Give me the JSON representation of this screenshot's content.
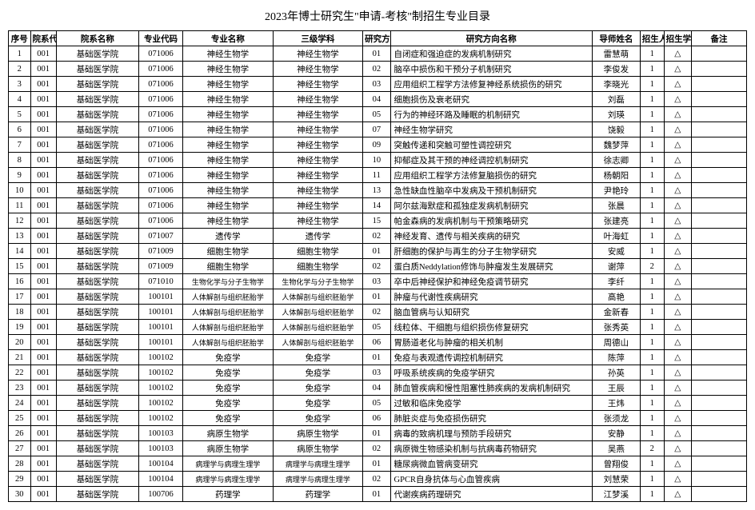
{
  "title": "2023年博士研究生\"申请-考核\"制招生专业目录",
  "headers": {
    "seq": "序号",
    "dcode": "院系代码",
    "dname": "院系名称",
    "mcode": "专业代码",
    "mname": "专业名称",
    "sub": "三级学科",
    "dircode": "研究方向代码",
    "dirname": "研究方向名称",
    "adv": "导师姓名",
    "num": "招生人数",
    "type": "招生学位类型",
    "note": "备注"
  },
  "rows": [
    {
      "seq": 1,
      "dcode": "001",
      "dname": "基础医学院",
      "mcode": "071006",
      "mname": "神经生物学",
      "sub": "神经生物学",
      "dircode": "01",
      "dirname": "自闭症和强迫症的发病机制研究",
      "adv": "雷慧萌",
      "num": 1,
      "type": "△",
      "note": ""
    },
    {
      "seq": 2,
      "dcode": "001",
      "dname": "基础医学院",
      "mcode": "071006",
      "mname": "神经生物学",
      "sub": "神经生物学",
      "dircode": "02",
      "dirname": "脑卒中损伤和干预分子机制研究",
      "adv": "李俊发",
      "num": 1,
      "type": "△",
      "note": ""
    },
    {
      "seq": 3,
      "dcode": "001",
      "dname": "基础医学院",
      "mcode": "071006",
      "mname": "神经生物学",
      "sub": "神经生物学",
      "dircode": "03",
      "dirname": "应用组织工程学方法修复神经系统损伤的研究",
      "adv": "李晓光",
      "num": 1,
      "type": "△",
      "note": ""
    },
    {
      "seq": 4,
      "dcode": "001",
      "dname": "基础医学院",
      "mcode": "071006",
      "mname": "神经生物学",
      "sub": "神经生物学",
      "dircode": "04",
      "dirname": "细胞损伤及衰老研究",
      "adv": "刘磊",
      "num": 1,
      "type": "△",
      "note": ""
    },
    {
      "seq": 5,
      "dcode": "001",
      "dname": "基础医学院",
      "mcode": "071006",
      "mname": "神经生物学",
      "sub": "神经生物学",
      "dircode": "05",
      "dirname": "行为的神经环路及睡眠的机制研究",
      "adv": "刘瑛",
      "num": 1,
      "type": "△",
      "note": ""
    },
    {
      "seq": 6,
      "dcode": "001",
      "dname": "基础医学院",
      "mcode": "071006",
      "mname": "神经生物学",
      "sub": "神经生物学",
      "dircode": "07",
      "dirname": "神经生物学研究",
      "adv": "饶毅",
      "num": 1,
      "type": "△",
      "note": ""
    },
    {
      "seq": 7,
      "dcode": "001",
      "dname": "基础医学院",
      "mcode": "071006",
      "mname": "神经生物学",
      "sub": "神经生物学",
      "dircode": "09",
      "dirname": "突触传递和突触可塑性调控研究",
      "adv": "魏梦萍",
      "num": 1,
      "type": "△",
      "note": ""
    },
    {
      "seq": 8,
      "dcode": "001",
      "dname": "基础医学院",
      "mcode": "071006",
      "mname": "神经生物学",
      "sub": "神经生物学",
      "dircode": "10",
      "dirname": "抑郁症及其干预的神经调控机制研究",
      "adv": "徐志卿",
      "num": 1,
      "type": "△",
      "note": ""
    },
    {
      "seq": 9,
      "dcode": "001",
      "dname": "基础医学院",
      "mcode": "071006",
      "mname": "神经生物学",
      "sub": "神经生物学",
      "dircode": "11",
      "dirname": "应用组织工程学方法修复脑损伤的研究",
      "adv": "杨朝阳",
      "num": 1,
      "type": "△",
      "note": ""
    },
    {
      "seq": 10,
      "dcode": "001",
      "dname": "基础医学院",
      "mcode": "071006",
      "mname": "神经生物学",
      "sub": "神经生物学",
      "dircode": "13",
      "dirname": "急性缺血性脑卒中发病及干预机制研究",
      "adv": "尹艳玲",
      "num": 1,
      "type": "△",
      "note": ""
    },
    {
      "seq": 11,
      "dcode": "001",
      "dname": "基础医学院",
      "mcode": "071006",
      "mname": "神经生物学",
      "sub": "神经生物学",
      "dircode": "14",
      "dirname": "阿尔兹海默症和孤独症发病机制研究",
      "adv": "张晨",
      "num": 1,
      "type": "△",
      "note": ""
    },
    {
      "seq": 12,
      "dcode": "001",
      "dname": "基础医学院",
      "mcode": "071006",
      "mname": "神经生物学",
      "sub": "神经生物学",
      "dircode": "15",
      "dirname": "帕金森病的发病机制与干预策略研究",
      "adv": "张建亮",
      "num": 1,
      "type": "△",
      "note": ""
    },
    {
      "seq": 13,
      "dcode": "001",
      "dname": "基础医学院",
      "mcode": "071007",
      "mname": "遗传学",
      "sub": "遗传学",
      "dircode": "02",
      "dirname": "神经发育、遗传与相关疾病的研究",
      "adv": "叶海虹",
      "num": 1,
      "type": "△",
      "note": ""
    },
    {
      "seq": 14,
      "dcode": "001",
      "dname": "基础医学院",
      "mcode": "071009",
      "mname": "细胞生物学",
      "sub": "细胞生物学",
      "dircode": "01",
      "dirname": "肝细胞的保护与再生的分子生物学研究",
      "adv": "安威",
      "num": 1,
      "type": "△",
      "note": ""
    },
    {
      "seq": 15,
      "dcode": "001",
      "dname": "基础医学院",
      "mcode": "071009",
      "mname": "细胞生物学",
      "sub": "细胞生物学",
      "dircode": "02",
      "dirname": "蛋白质Neddylation修饰与肿瘤发生发展研究",
      "adv": "谢萍",
      "num": 2,
      "type": "△",
      "note": ""
    },
    {
      "seq": 16,
      "dcode": "001",
      "dname": "基础医学院",
      "mcode": "071010",
      "mname": "生物化学与分子生物学",
      "sub": "生物化学与分子生物学",
      "dircode": "03",
      "dirname": "卒中后神经保护和神经免疫调节研究",
      "adv": "李纤",
      "num": 1,
      "type": "△",
      "note": ""
    },
    {
      "seq": 17,
      "dcode": "001",
      "dname": "基础医学院",
      "mcode": "100101",
      "mname": "人体解剖与组织胚胎学",
      "sub": "人体解剖与组织胚胎学",
      "dircode": "01",
      "dirname": "肿瘤与代谢性疾病研究",
      "adv": "高艳",
      "num": 1,
      "type": "△",
      "note": ""
    },
    {
      "seq": 18,
      "dcode": "001",
      "dname": "基础医学院",
      "mcode": "100101",
      "mname": "人体解剖与组织胚胎学",
      "sub": "人体解剖与组织胚胎学",
      "dircode": "02",
      "dirname": "脑血管病与认知研究",
      "adv": "金新春",
      "num": 1,
      "type": "△",
      "note": ""
    },
    {
      "seq": 19,
      "dcode": "001",
      "dname": "基础医学院",
      "mcode": "100101",
      "mname": "人体解剖与组织胚胎学",
      "sub": "人体解剖与组织胚胎学",
      "dircode": "05",
      "dirname": "线粒体、干细胞与组织损伤修复研究",
      "adv": "张秀英",
      "num": 1,
      "type": "△",
      "note": ""
    },
    {
      "seq": 20,
      "dcode": "001",
      "dname": "基础医学院",
      "mcode": "100101",
      "mname": "人体解剖与组织胚胎学",
      "sub": "人体解剖与组织胚胎学",
      "dircode": "06",
      "dirname": "胃肠道老化与肿瘤的相关机制",
      "adv": "周德山",
      "num": 1,
      "type": "△",
      "note": ""
    },
    {
      "seq": 21,
      "dcode": "001",
      "dname": "基础医学院",
      "mcode": "100102",
      "mname": "免疫学",
      "sub": "免疫学",
      "dircode": "01",
      "dirname": "免疫与表观遗传调控机制研究",
      "adv": "陈萍",
      "num": 1,
      "type": "△",
      "note": ""
    },
    {
      "seq": 22,
      "dcode": "001",
      "dname": "基础医学院",
      "mcode": "100102",
      "mname": "免疫学",
      "sub": "免疫学",
      "dircode": "03",
      "dirname": "呼吸系统疾病的免疫学研究",
      "adv": "孙英",
      "num": 1,
      "type": "△",
      "note": ""
    },
    {
      "seq": 23,
      "dcode": "001",
      "dname": "基础医学院",
      "mcode": "100102",
      "mname": "免疫学",
      "sub": "免疫学",
      "dircode": "04",
      "dirname": "肺血管疾病和慢性阻塞性肺疾病的发病机制研究",
      "adv": "王辰",
      "num": 1,
      "type": "△",
      "note": ""
    },
    {
      "seq": 24,
      "dcode": "001",
      "dname": "基础医学院",
      "mcode": "100102",
      "mname": "免疫学",
      "sub": "免疫学",
      "dircode": "05",
      "dirname": "过敏和临床免疫学",
      "adv": "王炜",
      "num": 1,
      "type": "△",
      "note": ""
    },
    {
      "seq": 25,
      "dcode": "001",
      "dname": "基础医学院",
      "mcode": "100102",
      "mname": "免疫学",
      "sub": "免疫学",
      "dircode": "06",
      "dirname": "肺脏炎症与免疫损伤研究",
      "adv": "张须龙",
      "num": 1,
      "type": "△",
      "note": ""
    },
    {
      "seq": 26,
      "dcode": "001",
      "dname": "基础医学院",
      "mcode": "100103",
      "mname": "病原生物学",
      "sub": "病原生物学",
      "dircode": "01",
      "dirname": "病毒的致病机理与预防手段研究",
      "adv": "安静",
      "num": 1,
      "type": "△",
      "note": ""
    },
    {
      "seq": 27,
      "dcode": "001",
      "dname": "基础医学院",
      "mcode": "100103",
      "mname": "病原生物学",
      "sub": "病原生物学",
      "dircode": "02",
      "dirname": "病原微生物感染机制与抗病毒药物研究",
      "adv": "吴燕",
      "num": 2,
      "type": "△",
      "note": ""
    },
    {
      "seq": 28,
      "dcode": "001",
      "dname": "基础医学院",
      "mcode": "100104",
      "mname": "病理学与病理生理学",
      "sub": "病理学与病理生理学",
      "dircode": "01",
      "dirname": "糖尿病微血管病变研究",
      "adv": "曾翔俊",
      "num": 1,
      "type": "△",
      "note": ""
    },
    {
      "seq": 29,
      "dcode": "001",
      "dname": "基础医学院",
      "mcode": "100104",
      "mname": "病理学与病理生理学",
      "sub": "病理学与病理生理学",
      "dircode": "02",
      "dirname": "GPCR自身抗体与心血管疾病",
      "adv": "刘慧荣",
      "num": 1,
      "type": "△",
      "note": ""
    },
    {
      "seq": 30,
      "dcode": "001",
      "dname": "基础医学院",
      "mcode": "100706",
      "mname": "药理学",
      "sub": "药理学",
      "dircode": "01",
      "dirname": "代谢疾病药理研究",
      "adv": "江梦溪",
      "num": 1,
      "type": "△",
      "note": ""
    }
  ]
}
